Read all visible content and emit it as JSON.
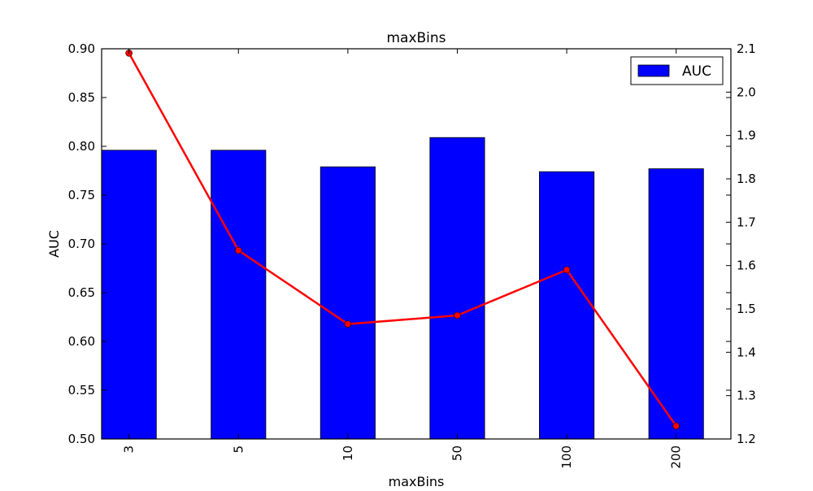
{
  "chart_data": {
    "type": "bar",
    "title": "maxBins",
    "xlabel": "maxBins",
    "ylabel": "AUC",
    "categories": [
      "3",
      "5",
      "10",
      "50",
      "100",
      "200"
    ],
    "ylim": [
      0.5,
      0.9
    ],
    "y_ticks": [
      "0.50",
      "0.55",
      "0.60",
      "0.65",
      "0.70",
      "0.75",
      "0.80",
      "0.85",
      "0.90"
    ],
    "y2lim": [
      1.2,
      2.1
    ],
    "y2_ticks": [
      "1.2",
      "1.3",
      "1.4",
      "1.5",
      "1.6",
      "1.7",
      "1.8",
      "1.9",
      "2.0",
      "2.1"
    ],
    "series": [
      {
        "name": "AUC",
        "type": "bar",
        "axis": "left",
        "color": "#0000ff",
        "values": [
          0.796,
          0.796,
          0.779,
          0.809,
          0.774,
          0.777
        ]
      },
      {
        "type": "line",
        "axis": "right",
        "color": "#ff0000",
        "values": [
          2.09,
          1.635,
          1.465,
          1.485,
          1.59,
          1.23
        ]
      }
    ],
    "legend": {
      "position": "upper-right",
      "entries": [
        "AUC"
      ]
    },
    "grid": false
  }
}
